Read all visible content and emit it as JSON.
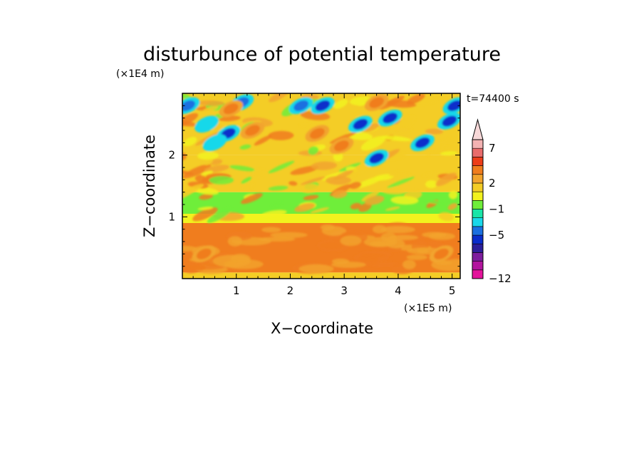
{
  "chart_data": {
    "type": "heatmap",
    "title": "disturbunce of potential temperature",
    "xlabel": "X−coordinate",
    "ylabel": "Z−coordinate",
    "x_unit": "(×1E5 m)",
    "y_unit": "(×1E4 m)",
    "time_label": "t=74400 s",
    "xlim": [
      0,
      5.15
    ],
    "ylim": [
      0,
      3.0
    ],
    "xticks": [
      1,
      2,
      3,
      4,
      5
    ],
    "yticks": [
      1,
      2
    ],
    "colorbar": {
      "levels": [
        -12,
        -11,
        -10,
        -8,
        -7,
        -5,
        -4,
        -2,
        -1,
        0,
        1,
        2,
        3,
        5,
        6,
        7,
        8,
        10
      ],
      "labels": [
        "−12",
        "−5",
        "−1",
        "2",
        "7"
      ],
      "label_values": [
        -12,
        -5,
        -1,
        2,
        7
      ],
      "colors": [
        "#e4139b",
        "#b2149e",
        "#7d1d9d",
        "#2c1f9a",
        "#0a2dcb",
        "#1b70e0",
        "#19d8ea",
        "#19e5a8",
        "#6fee3a",
        "#f2f21e",
        "#f4cd26",
        "#f2a42d",
        "#f07d1e",
        "#ed3d19",
        "#e96c6c",
        "#f3b2b2",
        "#f7d8d8"
      ]
    },
    "field": [
      {
        "z_range": [
          0,
          0.1
        ],
        "value": 1.5,
        "description_values": [
          1,
          2
        ]
      },
      {
        "z_range": [
          0.1,
          0.9
        ],
        "value": 3.5
      },
      {
        "z_range": [
          0.9,
          1.05
        ],
        "value": 0.5
      },
      {
        "z_range": [
          1.05,
          1.4
        ],
        "value": -0.5
      },
      {
        "z_range": [
          1.4,
          2.0
        ],
        "value": 1.0
      },
      {
        "z_range": [
          2.0,
          3.0
        ],
        "value": 1.5
      }
    ],
    "features": [
      {
        "x": 0.85,
        "z": 2.35,
        "value": -7
      },
      {
        "x": 0.6,
        "z": 2.2,
        "value": -4
      },
      {
        "x": 0.1,
        "z": 2.8,
        "value": -5
      },
      {
        "x": 0.45,
        "z": 2.5,
        "value": -4
      },
      {
        "x": 1.1,
        "z": 2.85,
        "value": -5
      },
      {
        "x": 2.2,
        "z": 2.8,
        "value": -5
      },
      {
        "x": 2.6,
        "z": 2.8,
        "value": -6
      },
      {
        "x": 3.3,
        "z": 2.5,
        "value": -6
      },
      {
        "x": 3.85,
        "z": 2.6,
        "value": -7
      },
      {
        "x": 3.6,
        "z": 1.95,
        "value": -7
      },
      {
        "x": 4.45,
        "z": 2.2,
        "value": -6
      },
      {
        "x": 4.95,
        "z": 2.55,
        "value": -7
      },
      {
        "x": 5.05,
        "z": 2.8,
        "value": -6
      },
      {
        "x": 0.9,
        "z": 2.75,
        "value": 4
      },
      {
        "x": 1.3,
        "z": 2.4,
        "value": 3
      },
      {
        "x": 2.5,
        "z": 2.35,
        "value": 4
      },
      {
        "x": 3.6,
        "z": 2.85,
        "value": 3
      },
      {
        "x": 2.95,
        "z": 2.15,
        "value": 3
      },
      {
        "x": 0.4,
        "z": 0.4,
        "value": 4
      },
      {
        "x": 4.8,
        "z": 0.4,
        "value": 4
      }
    ]
  }
}
